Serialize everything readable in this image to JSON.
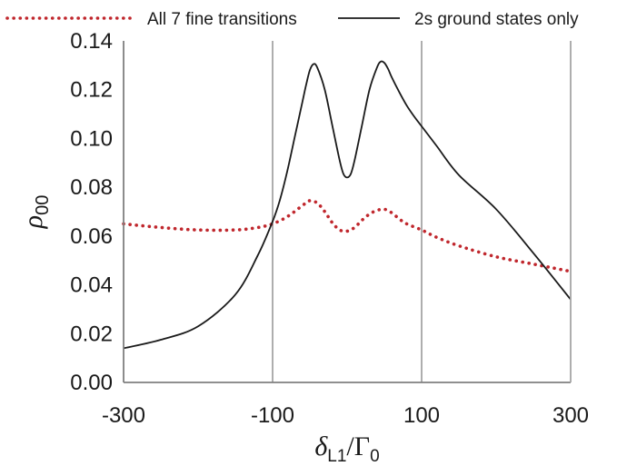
{
  "chart_data": {
    "type": "line",
    "xlabel": "δL1/Γ0",
    "ylabel": "ρ00",
    "xlim": [
      -300,
      300
    ],
    "ylim": [
      0,
      0.14
    ],
    "x_ticks": [
      "-300",
      "-100",
      "100",
      "300"
    ],
    "y_ticks": [
      "0.00",
      "0.02",
      "0.04",
      "0.06",
      "0.08",
      "0.10",
      "0.12",
      "0.14"
    ],
    "x_tick_values": [
      -300,
      -100,
      100,
      300
    ],
    "y_tick_values": [
      0,
      0.02,
      0.04,
      0.06,
      0.08,
      0.1,
      0.12,
      0.14
    ],
    "grid": "vertical",
    "legend_position": "top",
    "series": [
      {
        "name": "All 7 fine transitions",
        "color": "#c0272d",
        "style": "dotted",
        "x": [
          -300,
          -250,
          -200,
          -150,
          -120,
          -100,
          -80,
          -60,
          -50,
          -40,
          -30,
          -20,
          -10,
          0,
          10,
          20,
          30,
          40,
          50,
          60,
          70,
          80,
          100,
          120,
          150,
          200,
          250,
          300
        ],
        "y": [
          0.065,
          0.0635,
          0.0625,
          0.0625,
          0.0635,
          0.065,
          0.068,
          0.0725,
          0.0745,
          0.0735,
          0.07,
          0.0655,
          0.0625,
          0.062,
          0.0635,
          0.0665,
          0.069,
          0.0705,
          0.071,
          0.0695,
          0.067,
          0.065,
          0.0625,
          0.0595,
          0.056,
          0.0515,
          0.0485,
          0.0455
        ]
      },
      {
        "name": "2s ground states only",
        "color": "#1a1a1a",
        "style": "solid",
        "x": [
          -300,
          -250,
          -200,
          -150,
          -120,
          -100,
          -90,
          -80,
          -70,
          -60,
          -55,
          -50,
          -45,
          -40,
          -30,
          -20,
          -10,
          -5,
          0,
          5,
          10,
          20,
          30,
          40,
          45,
          50,
          55,
          60,
          70,
          80,
          90,
          100,
          120,
          150,
          200,
          250,
          300
        ],
        "y": [
          0.014,
          0.0175,
          0.023,
          0.036,
          0.052,
          0.066,
          0.075,
          0.087,
          0.101,
          0.115,
          0.122,
          0.128,
          0.1305,
          0.129,
          0.12,
          0.1055,
          0.091,
          0.0855,
          0.084,
          0.0855,
          0.091,
          0.1055,
          0.12,
          0.129,
          0.1315,
          0.131,
          0.1285,
          0.125,
          0.119,
          0.1135,
          0.109,
          0.105,
          0.097,
          0.085,
          0.071,
          0.053,
          0.034
        ]
      }
    ]
  }
}
